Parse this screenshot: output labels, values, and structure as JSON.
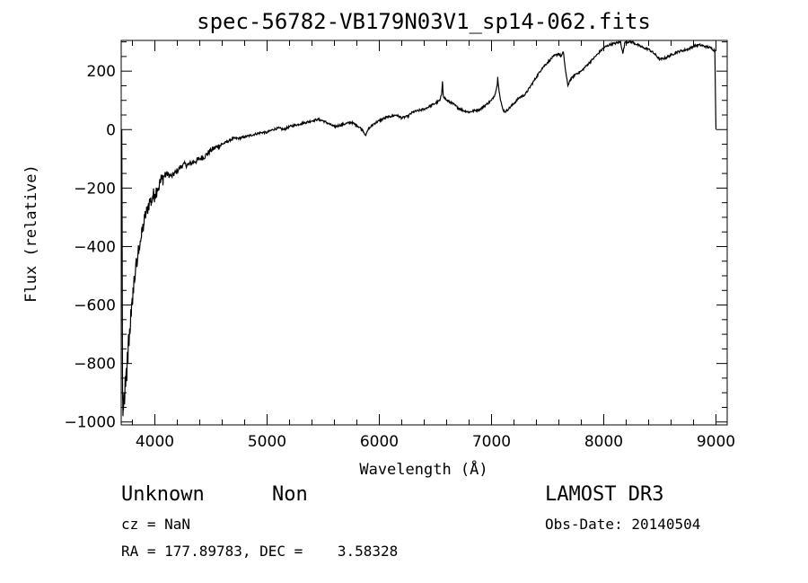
{
  "chart_data": {
    "type": "line",
    "title": "spec-56782-VB179N03V1_sp14-062.fits",
    "xlabel": "Wavelength (Å)",
    "ylabel": "Flux (relative)",
    "xlim": [
      3700,
      9100
    ],
    "ylim": [
      -1010,
      305
    ],
    "xticks": [
      4000,
      5000,
      6000,
      7000,
      8000,
      9000
    ],
    "yticks": [
      -1000,
      -800,
      -600,
      -400,
      -200,
      0,
      200
    ],
    "x_tick_labels": [
      "4000",
      "5000",
      "6000",
      "7000",
      "8000",
      "9000"
    ],
    "y_tick_labels": [
      "−1000",
      "−800",
      "−600",
      "−400",
      "−200",
      "0",
      "200"
    ],
    "series": [
      {
        "line_color": "#000000",
        "points": [
          [
            3705,
            0
          ],
          [
            3708,
            -320
          ],
          [
            3712,
            -900
          ],
          [
            3716,
            -980
          ],
          [
            3720,
            -960
          ],
          [
            3725,
            -900
          ],
          [
            3730,
            -940
          ],
          [
            3735,
            -850
          ],
          [
            3740,
            -880
          ],
          [
            3745,
            -820
          ],
          [
            3750,
            -860
          ],
          [
            3755,
            -760
          ],
          [
            3760,
            -800
          ],
          [
            3765,
            -700
          ],
          [
            3770,
            -740
          ],
          [
            3775,
            -680
          ],
          [
            3780,
            -690
          ],
          [
            3785,
            -620
          ],
          [
            3790,
            -640
          ],
          [
            3795,
            -590
          ],
          [
            3800,
            -600
          ],
          [
            3805,
            -540
          ],
          [
            3810,
            -560
          ],
          [
            3815,
            -500
          ],
          [
            3820,
            -520
          ],
          [
            3830,
            -460
          ],
          [
            3840,
            -470
          ],
          [
            3850,
            -420
          ],
          [
            3860,
            -400
          ],
          [
            3870,
            -380
          ],
          [
            3880,
            -370
          ],
          [
            3890,
            -340
          ],
          [
            3900,
            -330
          ],
          [
            3910,
            -300
          ],
          [
            3920,
            -290
          ],
          [
            3930,
            -280
          ],
          [
            3940,
            -260
          ],
          [
            3950,
            -250
          ],
          [
            3960,
            -240
          ],
          [
            3970,
            -250
          ],
          [
            3980,
            -230
          ],
          [
            4000,
            -220
          ],
          [
            4020,
            -200
          ],
          [
            4040,
            -190
          ],
          [
            4060,
            -170
          ],
          [
            4080,
            -160
          ],
          [
            4100,
            -150
          ],
          [
            4150,
            -160
          ],
          [
            4200,
            -140
          ],
          [
            4250,
            -120
          ],
          [
            4300,
            -120
          ],
          [
            4350,
            -110
          ],
          [
            4400,
            -100
          ],
          [
            4450,
            -90
          ],
          [
            4500,
            -70
          ],
          [
            4550,
            -60
          ],
          [
            4600,
            -50
          ],
          [
            4650,
            -40
          ],
          [
            4700,
            -30
          ],
          [
            4750,
            -30
          ],
          [
            4800,
            -25
          ],
          [
            4850,
            -20
          ],
          [
            4900,
            -15
          ],
          [
            4950,
            -10
          ],
          [
            5000,
            -10
          ],
          [
            5050,
            0
          ],
          [
            5100,
            5
          ],
          [
            5150,
            0
          ],
          [
            5200,
            10
          ],
          [
            5250,
            15
          ],
          [
            5300,
            20
          ],
          [
            5350,
            25
          ],
          [
            5400,
            30
          ],
          [
            5450,
            35
          ],
          [
            5500,
            30
          ],
          [
            5550,
            20
          ],
          [
            5600,
            10
          ],
          [
            5650,
            15
          ],
          [
            5700,
            20
          ],
          [
            5750,
            25
          ],
          [
            5800,
            15
          ],
          [
            5850,
            0
          ],
          [
            5880,
            -20
          ],
          [
            5900,
            0
          ],
          [
            5950,
            20
          ],
          [
            6000,
            30
          ],
          [
            6050,
            40
          ],
          [
            6100,
            45
          ],
          [
            6150,
            50
          ],
          [
            6200,
            40
          ],
          [
            6250,
            45
          ],
          [
            6300,
            60
          ],
          [
            6350,
            65
          ],
          [
            6400,
            70
          ],
          [
            6450,
            80
          ],
          [
            6500,
            90
          ],
          [
            6540,
            100
          ],
          [
            6555,
            120
          ],
          [
            6563,
            165
          ],
          [
            6570,
            115
          ],
          [
            6600,
            100
          ],
          [
            6650,
            90
          ],
          [
            6700,
            75
          ],
          [
            6750,
            65
          ],
          [
            6800,
            60
          ],
          [
            6850,
            65
          ],
          [
            6900,
            70
          ],
          [
            6950,
            85
          ],
          [
            7000,
            100
          ],
          [
            7030,
            120
          ],
          [
            7050,
            150
          ],
          [
            7055,
            180
          ],
          [
            7065,
            140
          ],
          [
            7080,
            100
          ],
          [
            7100,
            70
          ],
          [
            7120,
            60
          ],
          [
            7150,
            70
          ],
          [
            7200,
            90
          ],
          [
            7250,
            110
          ],
          [
            7300,
            120
          ],
          [
            7350,
            150
          ],
          [
            7400,
            180
          ],
          [
            7450,
            210
          ],
          [
            7500,
            230
          ],
          [
            7550,
            250
          ],
          [
            7600,
            260
          ],
          [
            7620,
            250
          ],
          [
            7640,
            265
          ],
          [
            7660,
            200
          ],
          [
            7680,
            150
          ],
          [
            7700,
            170
          ],
          [
            7750,
            190
          ],
          [
            7800,
            200
          ],
          [
            7850,
            220
          ],
          [
            7900,
            240
          ],
          [
            7950,
            260
          ],
          [
            8000,
            280
          ],
          [
            8050,
            290
          ],
          [
            8100,
            295
          ],
          [
            8150,
            300
          ],
          [
            8170,
            260
          ],
          [
            8190,
            300
          ],
          [
            8250,
            300
          ],
          [
            8300,
            290
          ],
          [
            8350,
            280
          ],
          [
            8400,
            275
          ],
          [
            8450,
            260
          ],
          [
            8500,
            240
          ],
          [
            8550,
            245
          ],
          [
            8600,
            255
          ],
          [
            8650,
            265
          ],
          [
            8700,
            270
          ],
          [
            8750,
            275
          ],
          [
            8800,
            285
          ],
          [
            8850,
            290
          ],
          [
            8900,
            285
          ],
          [
            8950,
            280
          ],
          [
            8990,
            270
          ],
          [
            8995,
            120
          ],
          [
            9000,
            0
          ]
        ]
      }
    ]
  },
  "info": {
    "object_type": "Unknown",
    "object_class": "Non",
    "survey": "LAMOST DR3",
    "cz": "cz = NaN",
    "obs_date": "Obs-Date: 20140504",
    "coords": "RA = 177.89783, DEC =    3.58328"
  }
}
